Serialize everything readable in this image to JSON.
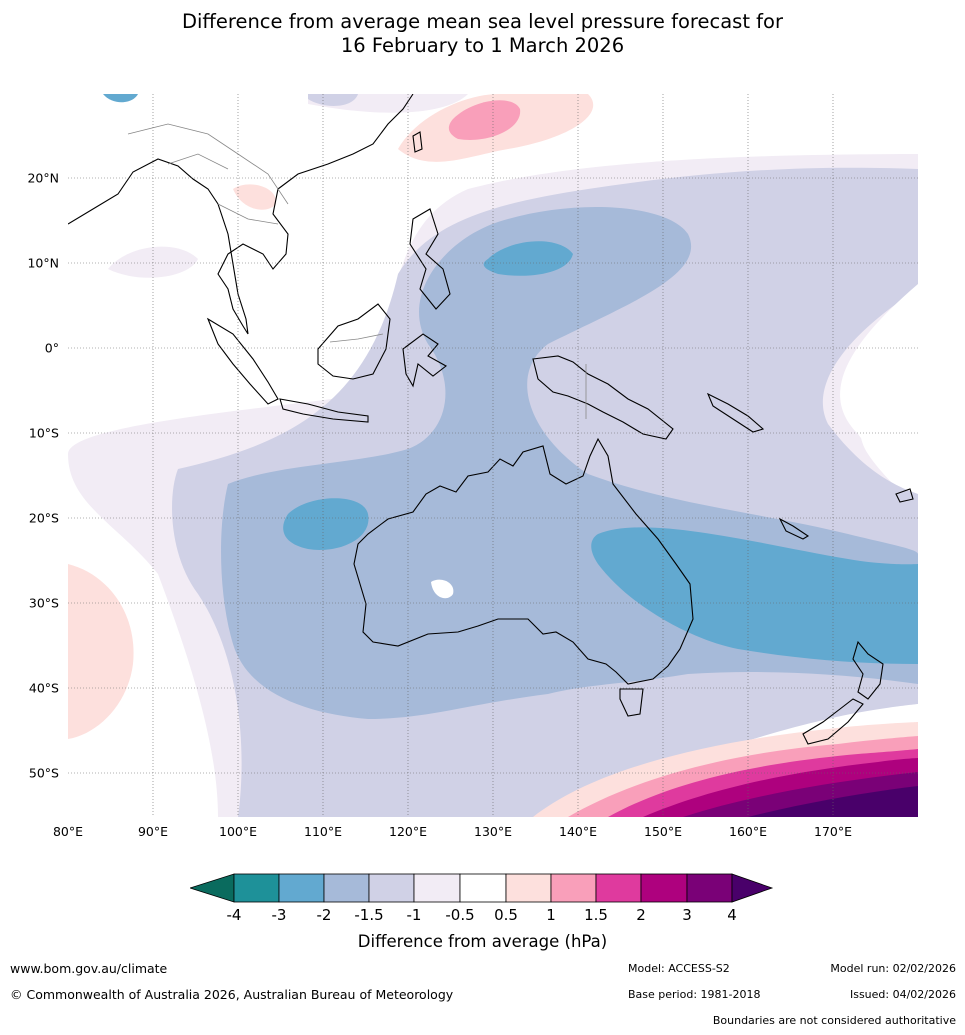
{
  "title_line1": "Difference from average mean sea level pressure forecast for",
  "title_line2": "16 February to 1 March 2026",
  "lat_labels": [
    "20°N",
    "10°N",
    "0°",
    "10°S",
    "20°S",
    "30°S",
    "40°S",
    "50°S"
  ],
  "lon_labels": [
    "80°E",
    "90°E",
    "100°E",
    "110°E",
    "120°E",
    "130°E",
    "140°E",
    "150°E",
    "160°E",
    "170°E"
  ],
  "colorbar": {
    "ticks": [
      "-4",
      "-3",
      "-2",
      "-1.5",
      "-1",
      "-0.5",
      "0.5",
      "1",
      "1.5",
      "2",
      "3",
      "4"
    ],
    "colors": {
      "lt_-4": "#0a6b5e",
      "-4_-3": "#1e9199",
      "-3_-2": "#62a9d0",
      "-2_-1.5": "#a6bad9",
      "-1.5_-1": "#d0d1e6",
      "-1_-0.5": "#f2ecf5",
      "-0.5_0.5": "#ffffff",
      "0.5_1": "#fde0dd",
      "1_1.5": "#f99fba",
      "1.5_2": "#df3a9e",
      "2_3": "#ae017e",
      "3_4": "#7a0177",
      "gt_4": "#49006a"
    },
    "label": "Difference from average (hPa)"
  },
  "footer": {
    "url": "www.bom.gov.au/climate",
    "copyright": "© Commonwealth of Australia 2026, Australian Bureau of Meteorology",
    "model": "Model: ACCESS-S2",
    "base_period": "Base period: 1981-2018",
    "model_run": "Model run: 02/02/2026",
    "issued": "Issued: 04/02/2026",
    "disclaimer": "Boundaries are not considered authoritative"
  }
}
